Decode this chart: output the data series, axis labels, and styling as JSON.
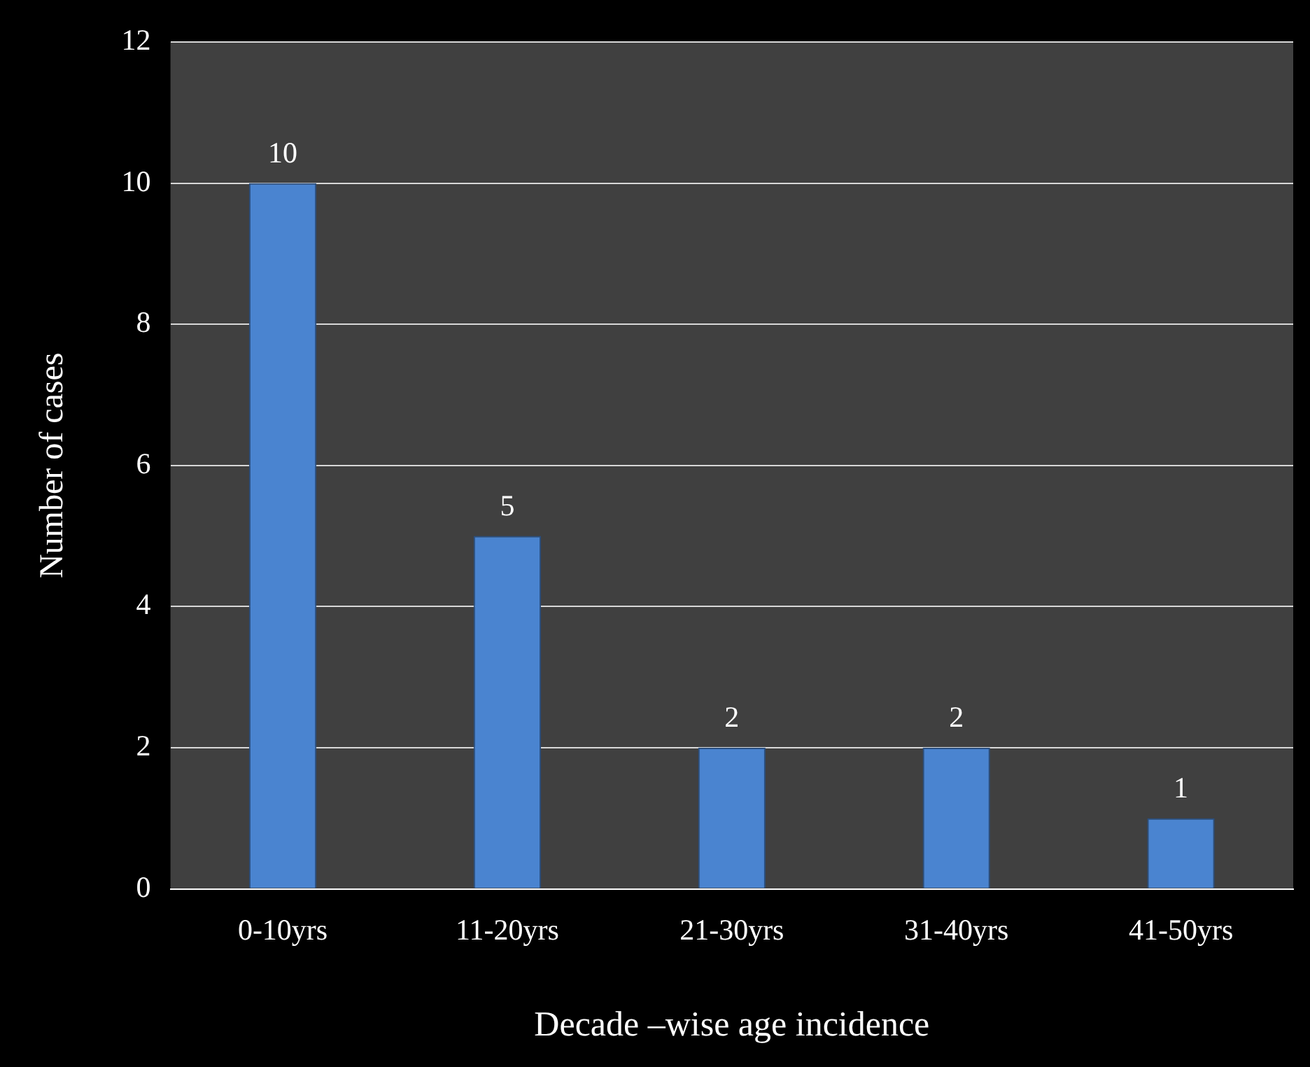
{
  "chart_data": {
    "type": "bar",
    "xlabel": "Decade –wise age incidence",
    "ylabel": "Number of cases",
    "categories": [
      "0-10yrs",
      "11-20yrs",
      "21-30yrs",
      "31-40yrs",
      "41-50yrs"
    ],
    "values": [
      10,
      5,
      2,
      2,
      1
    ],
    "color": "#4a84d0",
    "ylim": [
      0,
      12
    ],
    "yticks": [
      0,
      2,
      4,
      6,
      8,
      10,
      12
    ],
    "grid": "y",
    "data_labels": true
  }
}
